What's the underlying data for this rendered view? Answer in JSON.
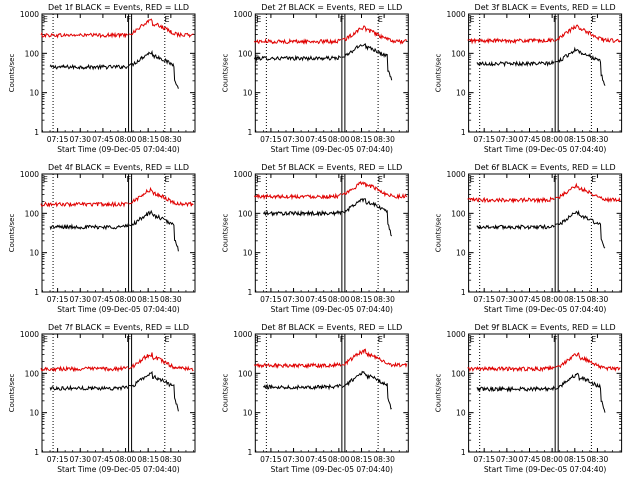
{
  "chart_data": [
    {
      "type": "line",
      "title": "Det 1f BLACK = Events, RED = LLD",
      "xlabel": "Start Time (09-Dec-05 07:04:40)",
      "ylabel": "Counts/sec",
      "yscale": "log",
      "ylim": [
        1,
        1000
      ],
      "grid": false,
      "xticks": [
        "07:15",
        "07:30",
        "07:45",
        "08:00",
        "08:15",
        "08:30"
      ],
      "yticks": [
        "1",
        "10",
        "100",
        "1000"
      ],
      "markers": [
        "E",
        "F",
        "E"
      ],
      "series": [
        {
          "color": "#000000",
          "level": 45,
          "x_start": "07:10",
          "x_end": "08:35"
        },
        {
          "color": "#e00000",
          "level": 290,
          "x_start": "07:04",
          "x_end": "08:45"
        }
      ]
    },
    {
      "type": "line",
      "title": "Det 2f BLACK = Events, RED = LLD",
      "xlabel": "Start Time (09-Dec-05 07:04:40)",
      "ylabel": "Counts/sec",
      "yscale": "log",
      "ylim": [
        1,
        1000
      ],
      "grid": false,
      "xticks": [
        "07:15",
        "07:30",
        "07:45",
        "08:00",
        "08:15",
        "08:30"
      ],
      "yticks": [
        "1",
        "10",
        "100",
        "1000"
      ],
      "markers": [
        "E",
        "F",
        "E"
      ],
      "series": [
        {
          "color": "#000000",
          "level": 75,
          "x_start": "07:04",
          "x_end": "08:35"
        },
        {
          "color": "#e00000",
          "level": 200,
          "x_start": "07:04",
          "x_end": "08:45"
        }
      ]
    },
    {
      "type": "line",
      "title": "Det 3f BLACK = Events, RED = LLD",
      "xlabel": "Start Time (09-Dec-05 07:04:40)",
      "ylabel": "Counts/sec",
      "yscale": "log",
      "ylim": [
        1,
        1000
      ],
      "grid": false,
      "xticks": [
        "07:15",
        "07:30",
        "07:45",
        "08:00",
        "08:15",
        "08:30"
      ],
      "yticks": [
        "1",
        "10",
        "100",
        "1000"
      ],
      "markers": [
        "E",
        "F",
        "E"
      ],
      "series": [
        {
          "color": "#000000",
          "level": 55,
          "x_start": "07:10",
          "x_end": "08:35"
        },
        {
          "color": "#e00000",
          "level": 210,
          "x_start": "07:04",
          "x_end": "08:45"
        }
      ]
    },
    {
      "type": "line",
      "title": "Det 4f BLACK = Events, RED = LLD",
      "xlabel": "Start Time (09-Dec-05 07:04:40)",
      "ylabel": "Counts/sec",
      "yscale": "log",
      "ylim": [
        1,
        1000
      ],
      "grid": false,
      "xticks": [
        "07:15",
        "07:30",
        "07:45",
        "08:00",
        "08:15",
        "08:30"
      ],
      "yticks": [
        "1",
        "10",
        "100",
        "1000"
      ],
      "markers": [
        "E",
        "F",
        "E"
      ],
      "series": [
        {
          "color": "#000000",
          "level": 45,
          "x_start": "07:10",
          "x_end": "08:35"
        },
        {
          "color": "#e00000",
          "level": 170,
          "x_start": "07:04",
          "x_end": "08:45"
        }
      ]
    },
    {
      "type": "line",
      "title": "Det 5f BLACK = Events, RED = LLD",
      "xlabel": "Start Time (09-Dec-05 07:04:40)",
      "ylabel": "Counts/sec",
      "yscale": "log",
      "ylim": [
        1,
        1000
      ],
      "grid": false,
      "xticks": [
        "07:15",
        "07:30",
        "07:45",
        "08:00",
        "08:15",
        "08:30"
      ],
      "yticks": [
        "1",
        "10",
        "100",
        "1000"
      ],
      "markers": [
        "E",
        "F",
        "E"
      ],
      "series": [
        {
          "color": "#000000",
          "level": 100,
          "x_start": "07:10",
          "x_end": "08:35"
        },
        {
          "color": "#e00000",
          "level": 270,
          "x_start": "07:04",
          "x_end": "08:45"
        }
      ]
    },
    {
      "type": "line",
      "title": "Det 6f BLACK = Events, RED = LLD",
      "xlabel": "Start Time (09-Dec-05 07:04:40)",
      "ylabel": "Counts/sec",
      "yscale": "log",
      "ylim": [
        1,
        1000
      ],
      "grid": false,
      "xticks": [
        "07:15",
        "07:30",
        "07:45",
        "08:00",
        "08:15",
        "08:30"
      ],
      "yticks": [
        "1",
        "10",
        "100",
        "1000"
      ],
      "markers": [
        "E",
        "F",
        "E"
      ],
      "series": [
        {
          "color": "#000000",
          "level": 45,
          "x_start": "07:10",
          "x_end": "08:35"
        },
        {
          "color": "#e00000",
          "level": 220,
          "x_start": "07:04",
          "x_end": "08:45"
        }
      ]
    },
    {
      "type": "line",
      "title": "Det 7f BLACK = Events, RED = LLD",
      "xlabel": "Start Time (09-Dec-05 07:04:40)",
      "ylabel": "Counts/sec",
      "yscale": "log",
      "ylim": [
        1,
        1000
      ],
      "grid": false,
      "xticks": [
        "07:15",
        "07:30",
        "07:45",
        "08:00",
        "08:15",
        "08:30"
      ],
      "yticks": [
        "1",
        "10",
        "100",
        "1000"
      ],
      "markers": [
        "E",
        "F",
        "E"
      ],
      "series": [
        {
          "color": "#000000",
          "level": 42,
          "x_start": "07:10",
          "x_end": "08:35"
        },
        {
          "color": "#e00000",
          "level": 130,
          "x_start": "07:04",
          "x_end": "08:45"
        }
      ]
    },
    {
      "type": "line",
      "title": "Det 8f BLACK = Events, RED = LLD",
      "xlabel": "Start Time (09-Dec-05 07:04:40)",
      "ylabel": "Counts/sec",
      "yscale": "log",
      "ylim": [
        1,
        1000
      ],
      "grid": false,
      "xticks": [
        "07:15",
        "07:30",
        "07:45",
        "08:00",
        "08:15",
        "08:30"
      ],
      "yticks": [
        "1",
        "10",
        "100",
        "1000"
      ],
      "markers": [
        "E",
        "F",
        "E"
      ],
      "series": [
        {
          "color": "#000000",
          "level": 45,
          "x_start": "07:10",
          "x_end": "08:35"
        },
        {
          "color": "#e00000",
          "level": 160,
          "x_start": "07:04",
          "x_end": "08:45"
        }
      ]
    },
    {
      "type": "line",
      "title": "Det 9f BLACK = Events, RED = LLD",
      "xlabel": "Start Time (09-Dec-05 07:04:40)",
      "ylabel": "Counts/sec",
      "yscale": "log",
      "ylim": [
        1,
        1000
      ],
      "grid": false,
      "xticks": [
        "07:15",
        "07:30",
        "07:45",
        "08:00",
        "08:15",
        "08:30"
      ],
      "yticks": [
        "1",
        "10",
        "100",
        "1000"
      ],
      "markers": [
        "E",
        "F",
        "E"
      ],
      "series": [
        {
          "color": "#000000",
          "level": 40,
          "x_start": "07:10",
          "x_end": "08:35"
        },
        {
          "color": "#e00000",
          "level": 130,
          "x_start": "07:04",
          "x_end": "08:45"
        }
      ]
    }
  ]
}
